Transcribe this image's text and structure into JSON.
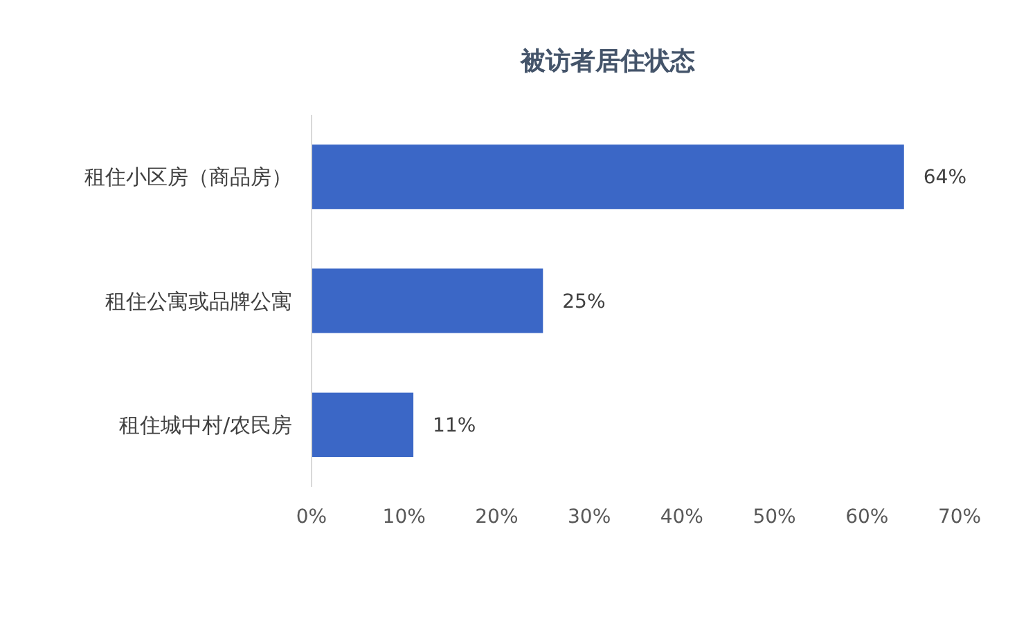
{
  "chart_data": {
    "type": "bar",
    "orientation": "horizontal",
    "title": "被访者居住状态",
    "categories": [
      "租住小区房（商品房）",
      "租住公寓或品牌公寓",
      "租住城中村/农民房"
    ],
    "values": [
      64,
      25,
      11
    ],
    "color": "#3b67c6",
    "value_labels": [
      "64%",
      "25%",
      "11%"
    ],
    "xlim": [
      0,
      70
    ],
    "xticks": [
      {
        "value": 0,
        "label": "0%"
      },
      {
        "value": 10,
        "label": "10%"
      },
      {
        "value": 20,
        "label": "20%"
      },
      {
        "value": 30,
        "label": "30%"
      },
      {
        "value": 40,
        "label": "40%"
      },
      {
        "value": 50,
        "label": "50%"
      },
      {
        "value": 60,
        "label": "60%"
      },
      {
        "value": 70,
        "label": "70%"
      }
    ],
    "grid": false
  }
}
